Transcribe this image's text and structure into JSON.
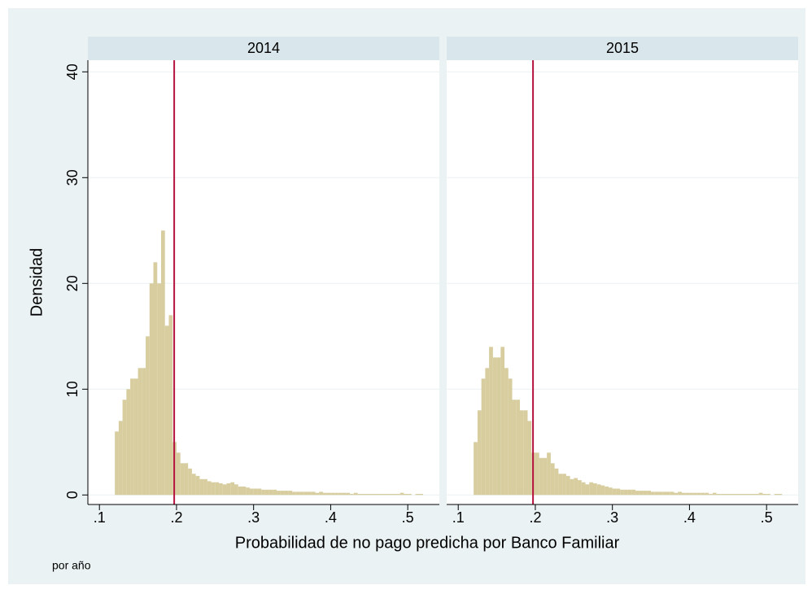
{
  "chart_data": {
    "type": "histogram",
    "xlabel": "Probabilidad de no pago predicha por Banco Familiar",
    "ylabel": "Densidad",
    "note": "por año",
    "color": "#d7cd9f",
    "xline": 0.197,
    "xline_color": "#b5123e",
    "grid": true,
    "xlim": [
      0.085,
      0.541
    ],
    "ylim": [
      -0.9,
      41.1
    ],
    "xticks": [
      {
        "value": 0.1,
        "label": ".1"
      },
      {
        "value": 0.2,
        "label": ".2"
      },
      {
        "value": 0.3,
        "label": ".3"
      },
      {
        "value": 0.4,
        "label": ".4"
      },
      {
        "value": 0.5,
        "label": ".5"
      }
    ],
    "yticks": [
      0,
      10,
      20,
      30,
      40
    ],
    "bins": [
      0.12,
      0.125,
      0.13,
      0.135,
      0.14,
      0.145,
      0.15,
      0.155,
      0.16,
      0.165,
      0.17,
      0.175,
      0.18,
      0.185,
      0.19,
      0.195,
      0.2,
      0.205,
      0.21,
      0.215,
      0.22,
      0.225,
      0.23,
      0.235,
      0.24,
      0.245,
      0.25,
      0.255,
      0.26,
      0.265,
      0.27,
      0.275,
      0.28,
      0.285,
      0.29,
      0.295,
      0.3,
      0.305,
      0.31,
      0.315,
      0.32,
      0.325,
      0.33,
      0.335,
      0.34,
      0.345,
      0.35,
      0.355,
      0.36,
      0.365,
      0.37,
      0.375,
      0.38,
      0.385,
      0.39,
      0.395,
      0.4,
      0.405,
      0.41,
      0.415,
      0.42,
      0.425,
      0.43,
      0.435,
      0.44,
      0.445,
      0.45,
      0.455,
      0.46,
      0.465,
      0.47,
      0.475,
      0.48,
      0.485,
      0.49,
      0.495,
      0.5,
      0.505,
      0.51,
      0.515,
      0.52
    ],
    "panels": [
      {
        "title": "2014",
        "values": [
          6,
          7,
          9,
          10,
          11,
          11,
          12,
          12,
          15,
          20,
          22,
          20,
          25,
          16,
          17,
          5,
          4,
          3,
          3,
          2.5,
          2,
          1.8,
          1.5,
          1.5,
          1.3,
          1.2,
          1.2,
          1.1,
          1,
          1.1,
          1.2,
          1,
          0.8,
          0.8,
          0.7,
          0.6,
          0.6,
          0.6,
          0.5,
          0.5,
          0.5,
          0.5,
          0.4,
          0.4,
          0.4,
          0.4,
          0.3,
          0.3,
          0.3,
          0.3,
          0.3,
          0.3,
          0.2,
          0.3,
          0.2,
          0.2,
          0.2,
          0.2,
          0.2,
          0.2,
          0.2,
          0.1,
          0.2,
          0.1,
          0.1,
          0.1,
          0.1,
          0.1,
          0.1,
          0.1,
          0.1,
          0.1,
          0.1,
          0.1,
          0.2,
          0.1,
          0.1,
          0,
          0.1,
          0.1
        ]
      },
      {
        "title": "2015",
        "values": [
          5,
          8,
          11,
          12,
          14,
          13,
          13,
          14,
          12,
          11,
          9,
          9,
          8,
          8,
          7,
          4,
          4,
          3.5,
          3.5,
          4,
          3,
          2.5,
          2,
          2,
          1.8,
          1.5,
          1.6,
          1.4,
          1.2,
          1,
          1.2,
          1.1,
          1,
          0.9,
          0.8,
          0.7,
          0.6,
          0.6,
          0.5,
          0.5,
          0.5,
          0.5,
          0.4,
          0.4,
          0.4,
          0.4,
          0.3,
          0.3,
          0.3,
          0.3,
          0.3,
          0.3,
          0.2,
          0.3,
          0.2,
          0.2,
          0.2,
          0.2,
          0.2,
          0.2,
          0.2,
          0.1,
          0.2,
          0.1,
          0.1,
          0.1,
          0.1,
          0.1,
          0.1,
          0.1,
          0.1,
          0.1,
          0.1,
          0.1,
          0.2,
          0.1,
          0.1,
          0,
          0.1,
          0.1
        ]
      }
    ]
  }
}
